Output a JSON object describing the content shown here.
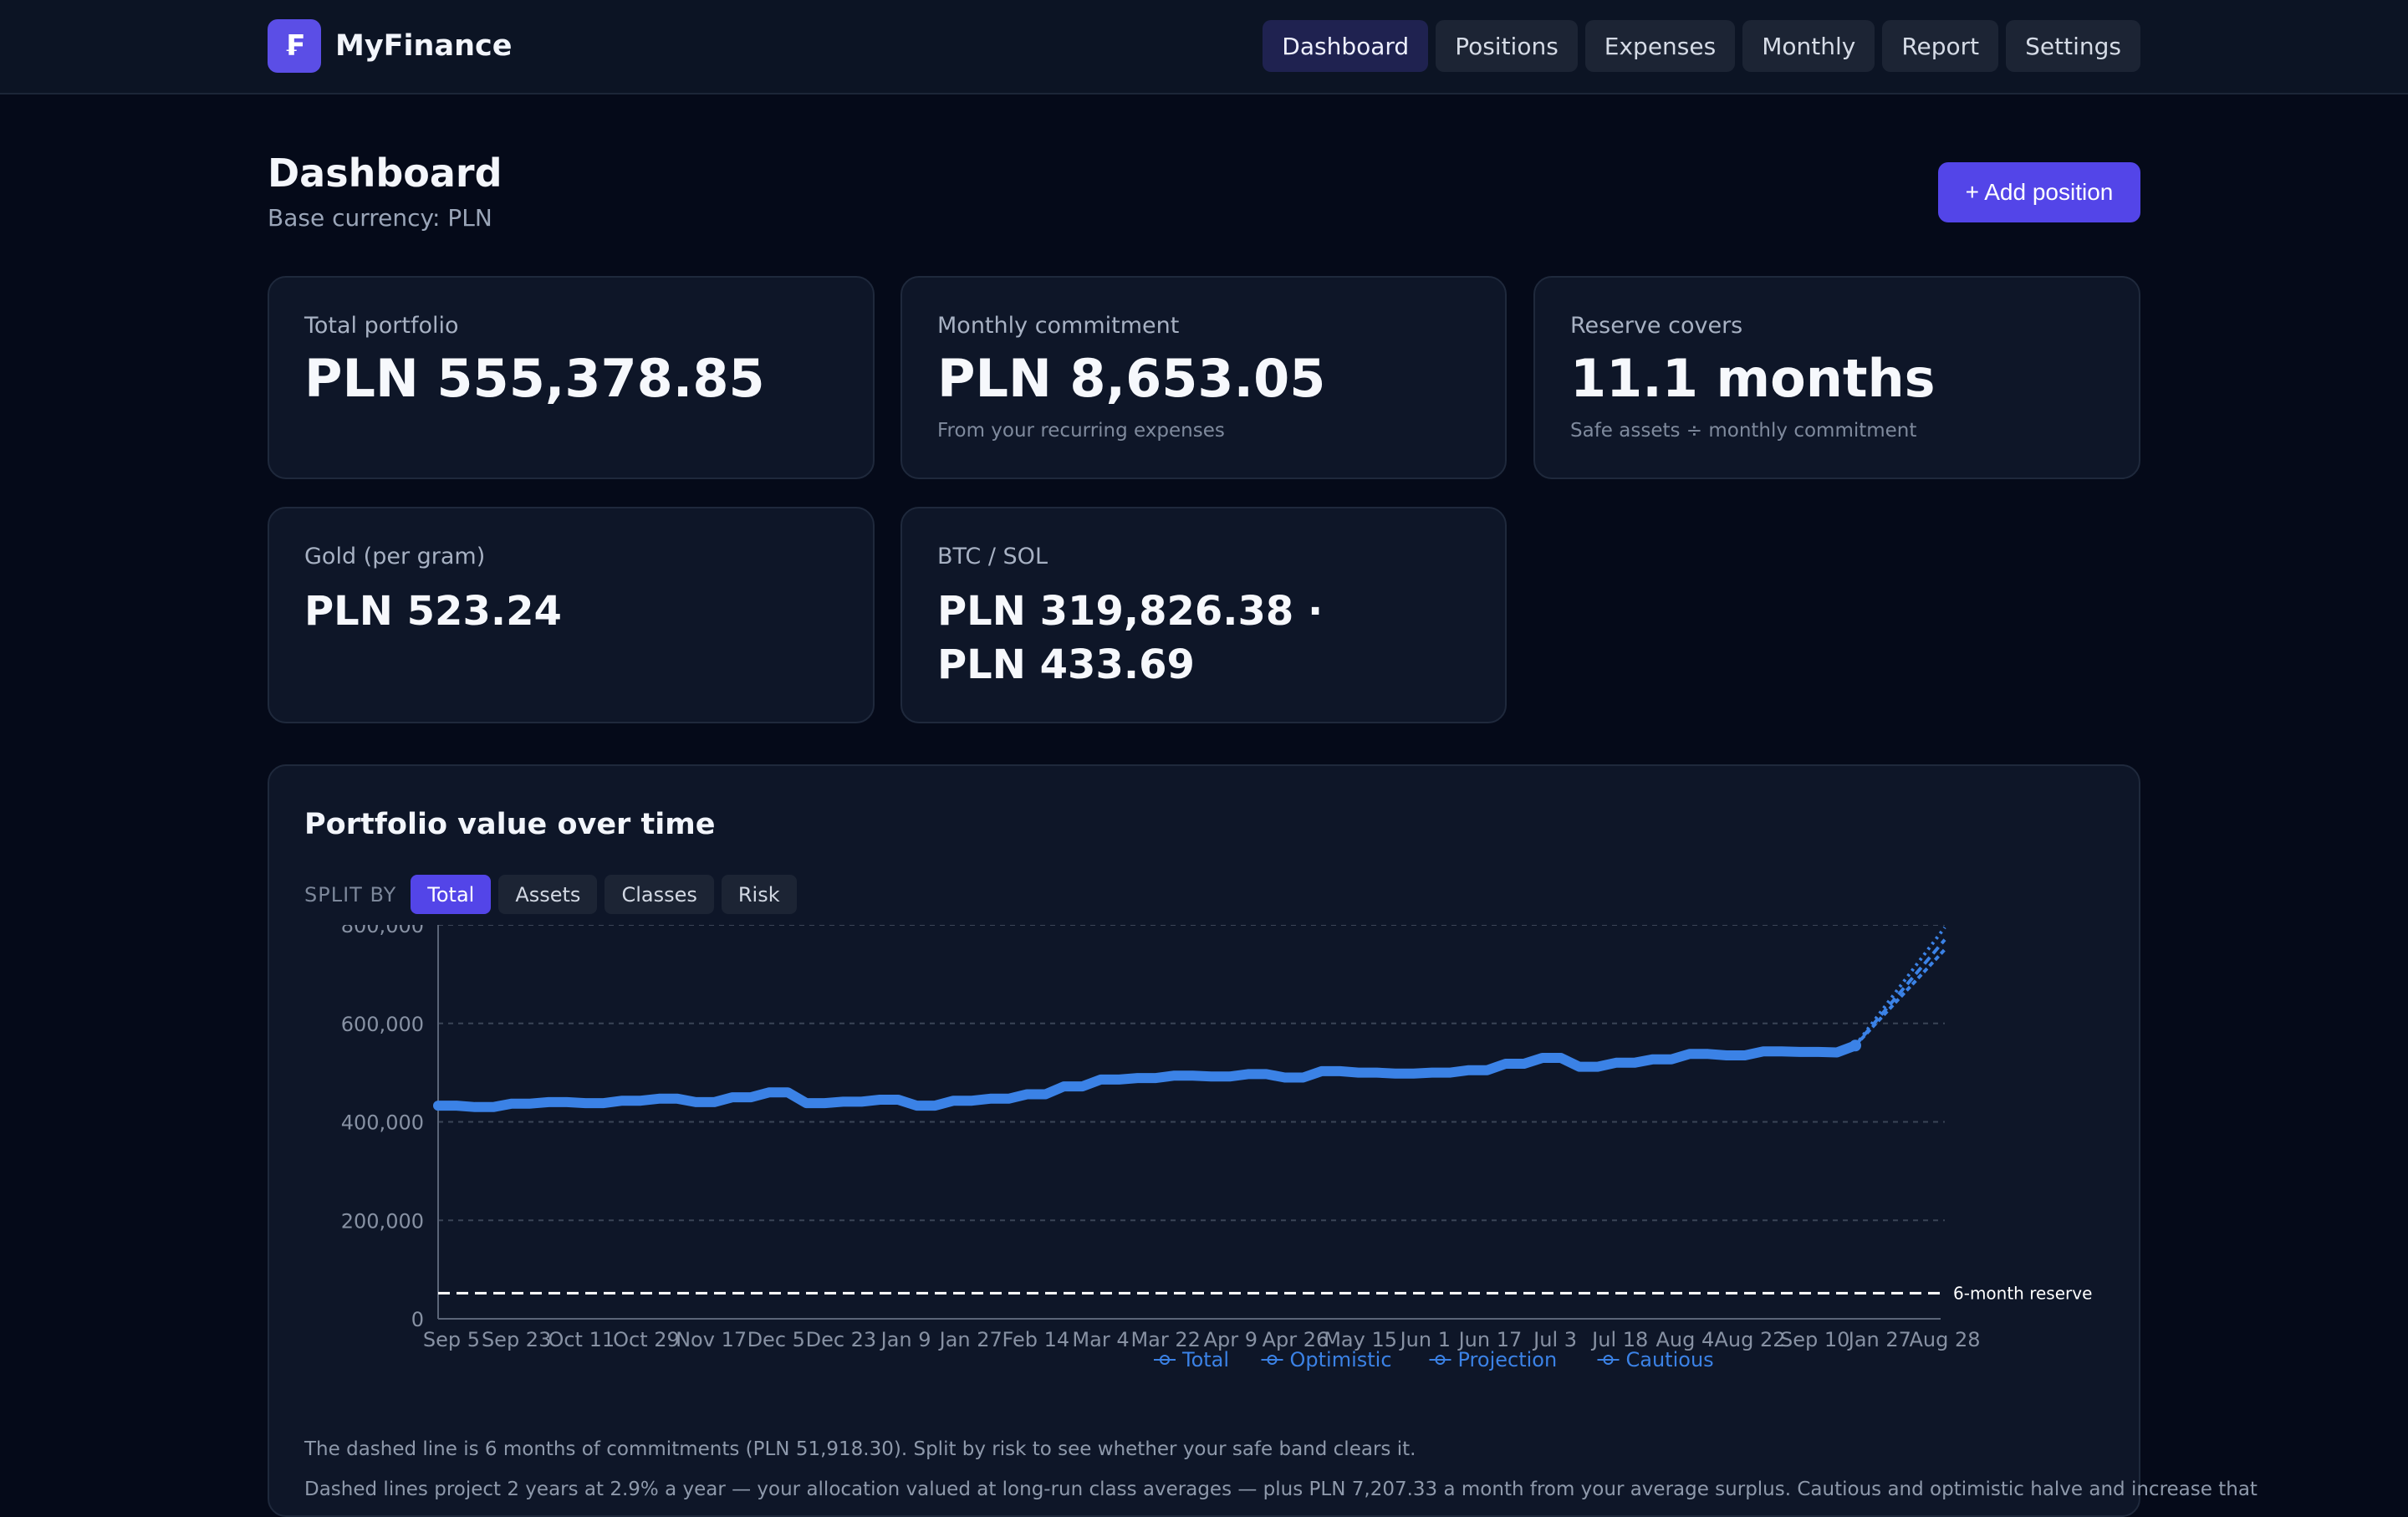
{
  "app": {
    "name": "MyFinance",
    "logo_glyph": "₣"
  },
  "nav": {
    "tabs": [
      "Dashboard",
      "Positions",
      "Expenses",
      "Monthly",
      "Report",
      "Settings"
    ],
    "active": "Dashboard"
  },
  "header": {
    "title": "Dashboard",
    "subtitle": "Base currency: PLN",
    "add_button": "+ Add position"
  },
  "cards": {
    "total_portfolio": {
      "label": "Total portfolio",
      "value": "PLN 555,378.85"
    },
    "monthly_commitment": {
      "label": "Monthly commitment",
      "value": "PLN 8,653.05",
      "note": "From your recurring expenses"
    },
    "reserve_covers": {
      "label": "Reserve covers",
      "value": "11.1 months",
      "note": "Safe assets ÷ monthly commitment"
    },
    "gold": {
      "label": "Gold (per gram)",
      "value": "PLN 523.24"
    },
    "btc_sol": {
      "label": "BTC / SOL",
      "value_line1": "PLN 319,826.38 ·",
      "value_line2": "PLN 433.69"
    }
  },
  "chart_panel": {
    "title": "Portfolio value over time",
    "split_label": "SPLIT BY",
    "split_options": [
      "Total",
      "Assets",
      "Classes",
      "Risk"
    ],
    "split_active": "Total",
    "footnote_1": "The dashed line is 6 months of commitments (PLN 51,918.30). Split by risk to see whether your safe band clears it.",
    "footnote_2": "Dashed lines project 2 years at 2.9% a year — your allocation valued at long-run class averages — plus PLN 7,207.33 a month from your average surplus. Cautious and optimistic halve and increase that"
  },
  "colors": {
    "accent": "#5345e8",
    "series": "#3b82e6",
    "reserve_line": "#ffffff"
  },
  "chart_data": {
    "type": "line",
    "ylim": [
      0,
      800000
    ],
    "yticks": [
      0,
      200000,
      400000,
      600000,
      800000
    ],
    "ytick_labels": [
      "0",
      "200,000",
      "400,000",
      "600,000",
      "800,000"
    ],
    "xtick_labels": [
      "Sep 5",
      "Sep 23",
      "Oct 11",
      "Oct 29",
      "Nov 17",
      "Dec 5",
      "Dec 23",
      "Jan 9",
      "Jan 27",
      "Feb 14",
      "Mar 4",
      "Mar 22",
      "Apr 9",
      "Apr 26",
      "May 15",
      "Jun 1",
      "Jun 17",
      "Jul 3",
      "Jul 18",
      "Aug 4",
      "Aug 22",
      "Sep 10",
      "Jan 27",
      "Aug 28"
    ],
    "series": [
      {
        "name": "Total",
        "values": [
          433000,
          433000,
          430000,
          430000,
          437000,
          437000,
          440000,
          440000,
          438000,
          438000,
          443000,
          443000,
          447000,
          447000,
          440000,
          440000,
          450000,
          450000,
          460000,
          460000,
          438000,
          438000,
          441000,
          441000,
          445000,
          445000,
          433000,
          433000,
          443000,
          443000,
          447000,
          447000,
          456000,
          456000,
          472000,
          472000,
          486000,
          486000,
          489000,
          489000,
          494000,
          494000,
          492000,
          492000,
          497000,
          497000,
          490000,
          490000,
          503000,
          503000,
          500000,
          500000,
          498000,
          498000,
          500000,
          500000,
          505000,
          505000,
          518000,
          518000,
          530000,
          530000,
          512000,
          512000,
          520000,
          520000,
          527000,
          527000,
          538000,
          538000,
          535000,
          535000,
          543000,
          543000,
          542000,
          542000,
          541000,
          555000
        ]
      },
      {
        "name": "Optimistic",
        "values": [
          555000,
          795000
        ]
      },
      {
        "name": "Projection",
        "values": [
          555000,
          770000
        ]
      },
      {
        "name": "Cautious",
        "values": [
          555000,
          750000
        ]
      }
    ],
    "reserve_line": {
      "value": 51918.3,
      "label": "6-month reserve"
    },
    "legend": [
      "Total",
      "Optimistic",
      "Projection",
      "Cautious"
    ],
    "legend_position": "bottom",
    "grid": true
  }
}
